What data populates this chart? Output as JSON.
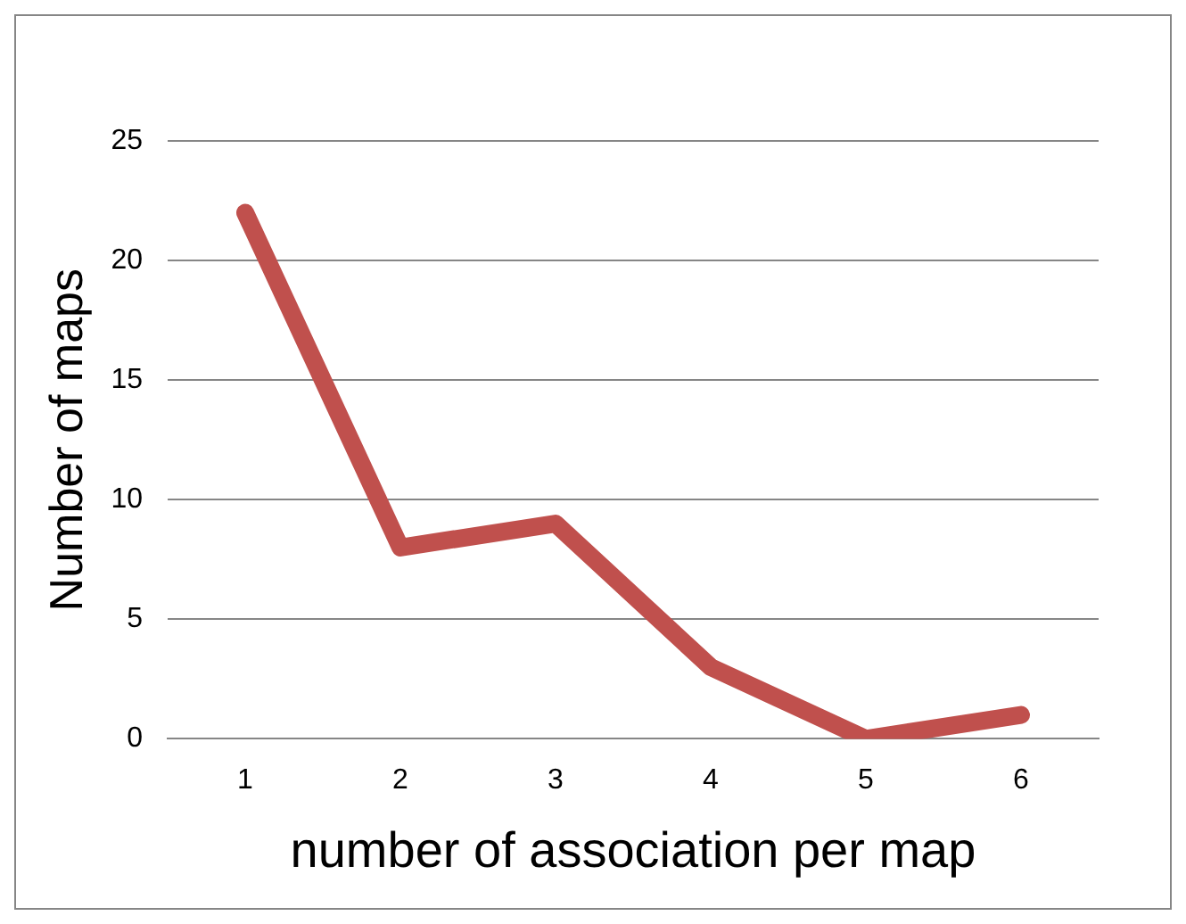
{
  "chart_data": {
    "type": "line",
    "xlabel": "number of association per map",
    "ylabel": "Number of maps",
    "categories": [
      "1",
      "2",
      "3",
      "4",
      "5",
      "6"
    ],
    "series": [
      {
        "color": "#c0504d",
        "values": [
          22,
          8,
          9,
          3,
          0,
          1
        ]
      }
    ],
    "ylim": [
      0,
      25
    ],
    "yticks": [
      0,
      5,
      10,
      15,
      20,
      25
    ],
    "grid": "y",
    "legend": false,
    "marker": "none",
    "line_style": "solid"
  }
}
